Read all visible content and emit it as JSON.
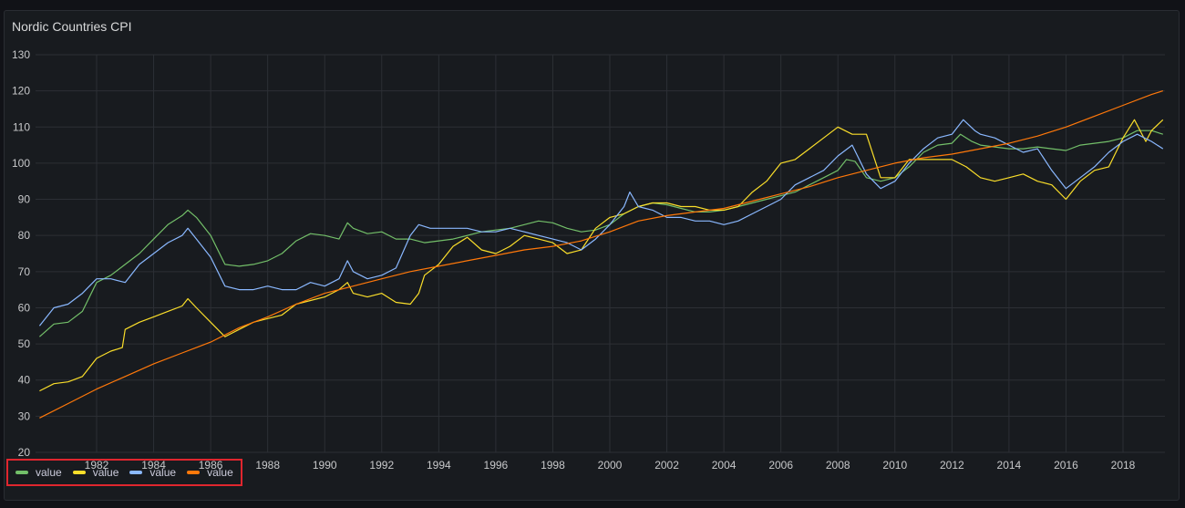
{
  "panel": {
    "title": "Nordic Countries CPI"
  },
  "legend": {
    "items": [
      {
        "label": "value",
        "color": "#73bf69"
      },
      {
        "label": "value",
        "color": "#fade2a"
      },
      {
        "label": "value",
        "color": "#8ab8ff"
      },
      {
        "label": "value",
        "color": "#ff780a"
      }
    ]
  },
  "chart_data": {
    "type": "line",
    "title": "Nordic Countries CPI",
    "xlabel": "",
    "ylabel": "",
    "ylim": [
      20,
      130
    ],
    "xlim": [
      1980,
      2019.5
    ],
    "yticks": [
      20,
      30,
      40,
      50,
      60,
      70,
      80,
      90,
      100,
      110,
      120,
      130
    ],
    "xticks": [
      1982,
      1984,
      1986,
      1988,
      1990,
      1992,
      1994,
      1996,
      1998,
      2000,
      2002,
      2004,
      2006,
      2008,
      2010,
      2012,
      2014,
      2016,
      2018
    ],
    "grid": true,
    "legend_position": "bottom-left",
    "series": [
      {
        "name": "value",
        "color": "#73bf69",
        "x": [
          1980.0,
          1980.5,
          1981.0,
          1981.5,
          1982.0,
          1982.5,
          1983.0,
          1983.5,
          1984.0,
          1984.5,
          1985.0,
          1985.2,
          1985.5,
          1986.0,
          1986.5,
          1987.0,
          1987.5,
          1988.0,
          1988.5,
          1989.0,
          1989.5,
          1990.0,
          1990.5,
          1990.8,
          1991.0,
          1991.5,
          1992.0,
          1992.5,
          1993.0,
          1993.5,
          1994.0,
          1994.5,
          1995.0,
          1995.5,
          1996.0,
          1996.5,
          1997.0,
          1997.5,
          1998.0,
          1998.5,
          1999.0,
          1999.5,
          2000.0,
          2000.5,
          2001.0,
          2001.5,
          2002.0,
          2002.5,
          2003.0,
          2003.5,
          2004.0,
          2004.5,
          2005.0,
          2005.5,
          2006.0,
          2006.5,
          2007.0,
          2007.5,
          2008.0,
          2008.3,
          2008.6,
          2009.0,
          2009.5,
          2010.0,
          2010.5,
          2011.0,
          2011.5,
          2012.0,
          2012.3,
          2012.7,
          2013.0,
          2013.5,
          2014.0,
          2014.5,
          2015.0,
          2015.5,
          2016.0,
          2016.5,
          2017.0,
          2017.5,
          2018.0,
          2018.5,
          2019.0,
          2019.4
        ],
        "values": [
          52,
          55.5,
          56,
          59,
          67,
          69,
          72,
          75,
          79,
          83,
          85.5,
          87,
          85,
          80,
          72,
          71.5,
          72,
          73,
          75,
          78.5,
          80.5,
          80,
          79,
          83.5,
          82,
          80.5,
          81,
          79,
          79,
          78,
          78.5,
          79,
          80,
          81,
          81.5,
          82,
          83,
          84,
          83.5,
          82,
          81,
          81.5,
          83,
          86,
          88,
          89,
          88.5,
          87.5,
          86.5,
          86.5,
          87,
          88,
          89,
          90,
          91,
          92,
          94,
          96,
          98,
          101,
          100.5,
          96,
          95,
          96,
          99,
          103,
          105,
          105.5,
          108,
          106,
          105,
          104.5,
          104,
          104,
          104.5,
          104,
          103.5,
          105,
          105.5,
          106,
          107,
          109,
          109,
          108
        ]
      },
      {
        "name": "value",
        "color": "#fade2a",
        "x": [
          1980.0,
          1980.5,
          1981.0,
          1981.5,
          1982.0,
          1982.5,
          1982.9,
          1983.0,
          1983.5,
          1984.0,
          1984.5,
          1985.0,
          1985.2,
          1985.5,
          1986.0,
          1986.5,
          1987.0,
          1987.5,
          1988.0,
          1988.5,
          1989.0,
          1989.5,
          1990.0,
          1990.5,
          1990.8,
          1991.0,
          1991.5,
          1992.0,
          1992.5,
          1993.0,
          1993.3,
          1993.5,
          1994.0,
          1994.5,
          1995.0,
          1995.5,
          1996.0,
          1996.5,
          1997.0,
          1997.5,
          1998.0,
          1998.5,
          1999.0,
          1999.5,
          2000.0,
          2000.5,
          2001.0,
          2001.5,
          2002.0,
          2002.5,
          2003.0,
          2003.5,
          2004.0,
          2004.5,
          2005.0,
          2005.5,
          2006.0,
          2006.5,
          2007.0,
          2007.5,
          2008.0,
          2008.5,
          2009.0,
          2009.5,
          2010.0,
          2010.5,
          2011.0,
          2011.5,
          2012.0,
          2012.5,
          2013.0,
          2013.5,
          2014.0,
          2014.5,
          2015.0,
          2015.5,
          2016.0,
          2016.5,
          2017.0,
          2017.5,
          2018.0,
          2018.4,
          2018.8,
          2019.0,
          2019.4
        ],
        "values": [
          37,
          39,
          39.5,
          41,
          46,
          48,
          49,
          54,
          56,
          57.5,
          59,
          60.5,
          62.5,
          60,
          56,
          52,
          54,
          56,
          57,
          58,
          61,
          62,
          63,
          65,
          67,
          64,
          63,
          64,
          61.5,
          61,
          64,
          69,
          72,
          77,
          79.5,
          76,
          75,
          77,
          80,
          79,
          78,
          75,
          76,
          82,
          85,
          86,
          88,
          89,
          89,
          88,
          88,
          87,
          87,
          88,
          92,
          95,
          100,
          101,
          104,
          107,
          110,
          108,
          108,
          96,
          96,
          101,
          101,
          101,
          101,
          99,
          96,
          95,
          96,
          97,
          95,
          94,
          90,
          95,
          98,
          99,
          107,
          112,
          106,
          109,
          112
        ]
      },
      {
        "name": "value",
        "color": "#8ab8ff",
        "x": [
          1980.0,
          1980.5,
          1981.0,
          1981.5,
          1982.0,
          1982.5,
          1983.0,
          1983.5,
          1984.0,
          1984.5,
          1985.0,
          1985.2,
          1985.5,
          1986.0,
          1986.5,
          1987.0,
          1987.5,
          1988.0,
          1988.5,
          1989.0,
          1989.5,
          1990.0,
          1990.5,
          1990.8,
          1991.0,
          1991.5,
          1992.0,
          1992.5,
          1993.0,
          1993.3,
          1993.7,
          1994.0,
          1994.5,
          1995.0,
          1995.5,
          1996.0,
          1996.5,
          1997.0,
          1997.5,
          1998.0,
          1998.5,
          1999.0,
          1999.5,
          2000.0,
          2000.5,
          2000.7,
          2001.0,
          2001.5,
          2002.0,
          2002.5,
          2003.0,
          2003.5,
          2004.0,
          2004.5,
          2005.0,
          2005.5,
          2006.0,
          2006.5,
          2007.0,
          2007.5,
          2008.0,
          2008.5,
          2009.0,
          2009.5,
          2010.0,
          2010.5,
          2011.0,
          2011.5,
          2012.0,
          2012.4,
          2012.8,
          2013.0,
          2013.5,
          2014.0,
          2014.5,
          2015.0,
          2015.5,
          2016.0,
          2016.5,
          2017.0,
          2017.5,
          2018.0,
          2018.5,
          2019.0,
          2019.4
        ],
        "values": [
          55,
          60,
          61,
          64,
          68,
          68,
          67,
          72,
          75,
          78,
          80,
          82,
          79,
          74,
          66,
          65,
          65,
          66,
          65,
          65,
          67,
          66,
          68,
          73,
          70,
          68,
          69,
          71,
          80,
          83,
          82,
          82,
          82,
          82,
          81,
          81,
          82,
          81,
          80,
          79,
          78,
          76,
          79,
          83,
          88,
          92,
          88,
          87,
          85,
          85,
          84,
          84,
          83,
          84,
          86,
          88,
          90,
          94,
          96,
          98,
          102,
          105,
          97,
          93,
          95,
          100,
          104,
          107,
          108,
          112,
          109,
          108,
          107,
          105,
          103,
          104,
          98,
          93,
          96,
          99,
          103,
          106,
          108,
          106,
          104
        ]
      },
      {
        "name": "value",
        "color": "#ff780a",
        "x": [
          1980.0,
          1981.0,
          1982.0,
          1983.0,
          1984.0,
          1985.0,
          1986.0,
          1987.0,
          1988.0,
          1989.0,
          1990.0,
          1991.0,
          1992.0,
          1993.0,
          1994.0,
          1995.0,
          1996.0,
          1997.0,
          1998.0,
          1999.0,
          2000.0,
          2001.0,
          2002.0,
          2003.0,
          2004.0,
          2005.0,
          2006.0,
          2007.0,
          2008.0,
          2009.0,
          2010.0,
          2011.0,
          2012.0,
          2013.0,
          2014.0,
          2015.0,
          2016.0,
          2017.0,
          2018.0,
          2019.0,
          2019.4
        ],
        "values": [
          29.5,
          33.5,
          37.5,
          41,
          44.5,
          47.5,
          50.5,
          54.5,
          57.5,
          61,
          64,
          66,
          68,
          70,
          71.5,
          73,
          74.5,
          76,
          77,
          78.5,
          81,
          84,
          85.5,
          86.5,
          87.5,
          89.5,
          91.5,
          93.5,
          96,
          98,
          100,
          101.5,
          102.5,
          104,
          105.5,
          107.5,
          110,
          113,
          116,
          119,
          120
        ]
      }
    ]
  }
}
